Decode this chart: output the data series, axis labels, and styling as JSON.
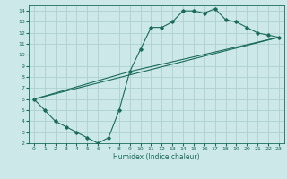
{
  "xlabel": "Humidex (Indice chaleur)",
  "bg_color": "#cce8e8",
  "grid_color": "#aacccc",
  "line_color": "#1a6b5a",
  "xlim": [
    -0.5,
    23.5
  ],
  "ylim": [
    2,
    14.5
  ],
  "xticks": [
    0,
    1,
    2,
    3,
    4,
    5,
    6,
    7,
    8,
    9,
    10,
    11,
    12,
    13,
    14,
    15,
    16,
    17,
    18,
    19,
    20,
    21,
    22,
    23
  ],
  "yticks": [
    2,
    3,
    4,
    5,
    6,
    7,
    8,
    9,
    10,
    11,
    12,
    13,
    14
  ],
  "curve1_x": [
    0,
    1,
    2,
    3,
    4,
    5,
    6,
    7,
    8,
    9,
    10,
    11,
    12,
    13,
    14,
    15,
    16,
    17,
    18,
    19,
    20,
    21,
    22,
    23
  ],
  "curve1_y": [
    6.0,
    5.0,
    4.0,
    3.5,
    3.0,
    2.5,
    2.0,
    2.5,
    5.0,
    8.5,
    10.5,
    12.5,
    12.5,
    13.0,
    14.0,
    14.0,
    13.8,
    14.2,
    13.2,
    13.0,
    12.5,
    12.0,
    11.8,
    11.6
  ],
  "curve2_x": [
    0,
    23
  ],
  "curve2_y": [
    6.0,
    11.6
  ],
  "curve3_x": [
    0,
    9,
    23
  ],
  "curve3_y": [
    6.0,
    8.5,
    11.6
  ]
}
